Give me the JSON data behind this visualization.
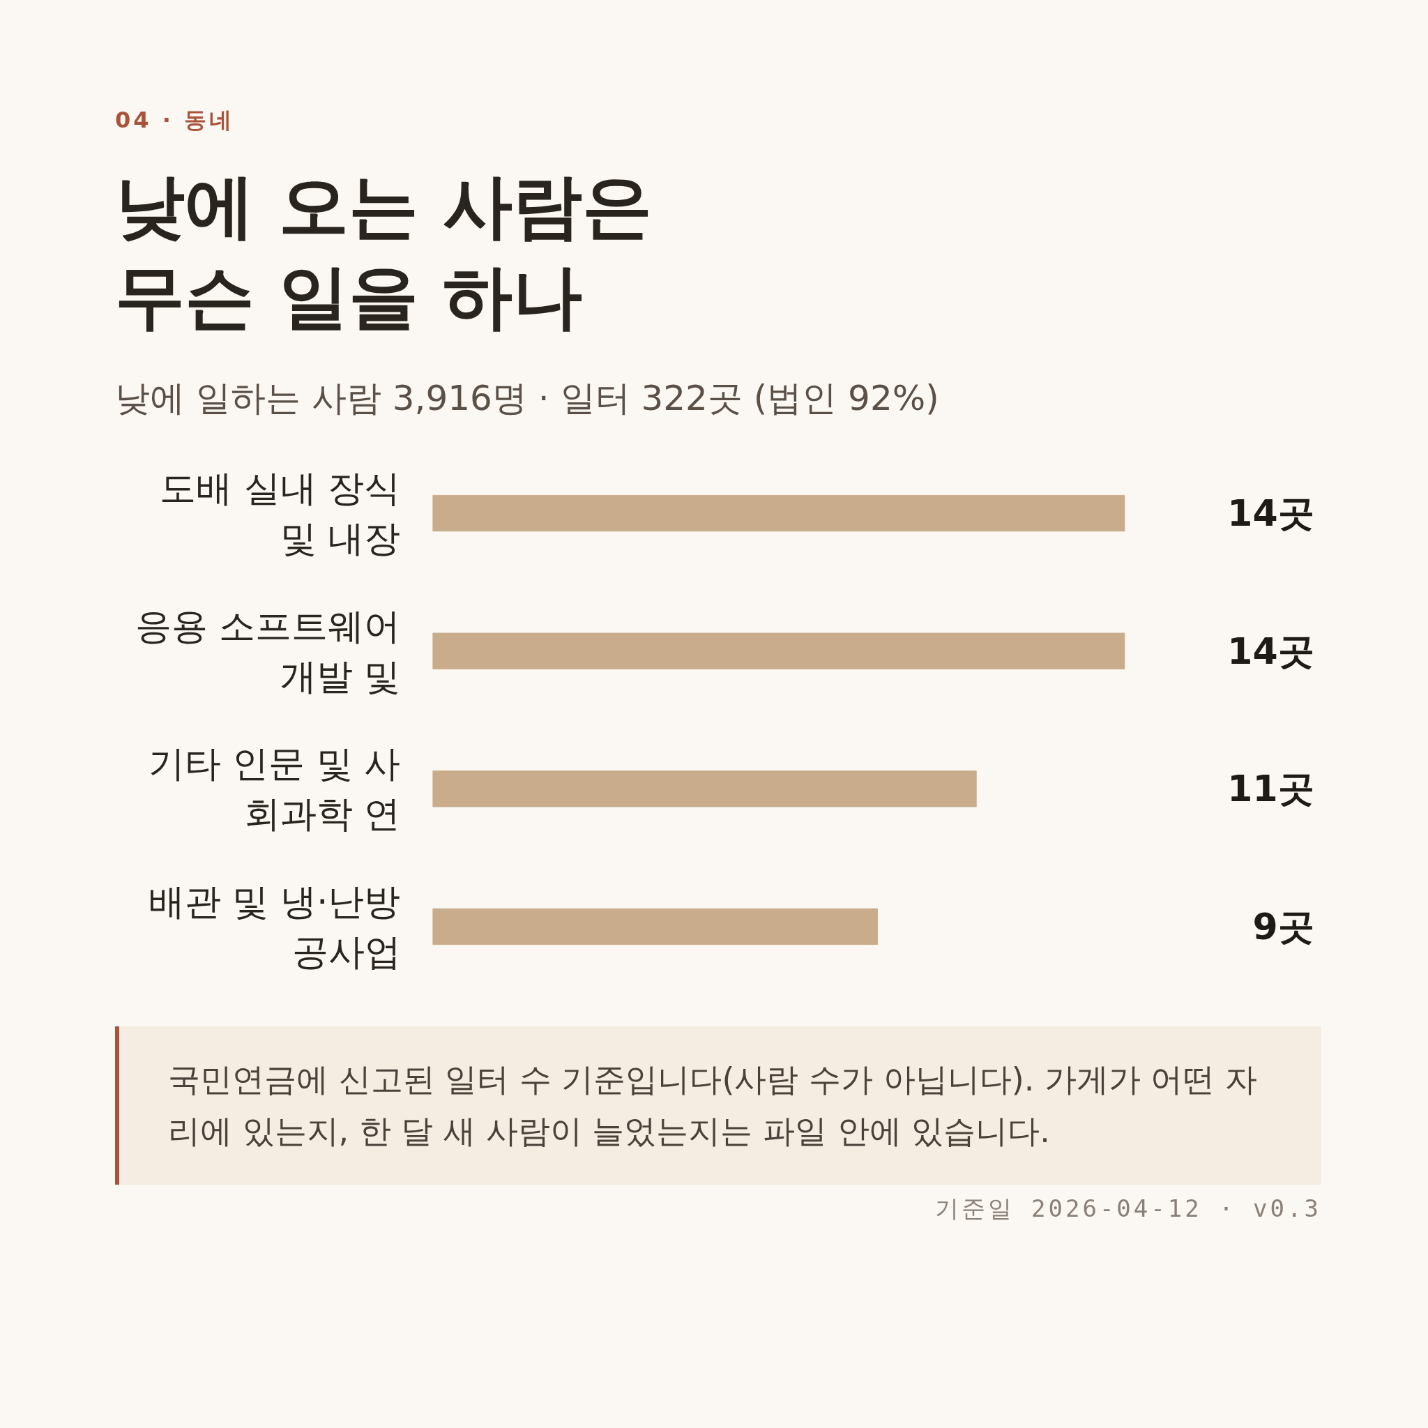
{
  "chart_data": {
    "type": "bar",
    "orientation": "horizontal",
    "title": "낮에 오는 사람은\n무슨 일을 하나",
    "subtitle": "낮에 일하는 사람 3,916명 · 일터 322곳 (법인 92%)",
    "categories": [
      "도배 실내 장식\n및 내장",
      "응용 소프트웨어\n개발 및",
      "기타 인문 및 사\n회과학 연",
      "배관 및 냉·난방\n공사업"
    ],
    "values": [
      14,
      14,
      11,
      9
    ],
    "color": "#c8ac8c",
    "value_labels": [
      "14곳",
      "14곳",
      "11곳",
      "9곳"
    ],
    "annotations": [
      "04 · 동네",
      "국민연금에 신고된 일터 수 기준입니다(사람 수가 아닙니다). 가게가 어떤 자리에 있는지, 한 달 새 사람이 늘었는지는 파일 안에 있습니다.",
      "기준일 2026-04-12 · v0.3"
    ]
  }
}
